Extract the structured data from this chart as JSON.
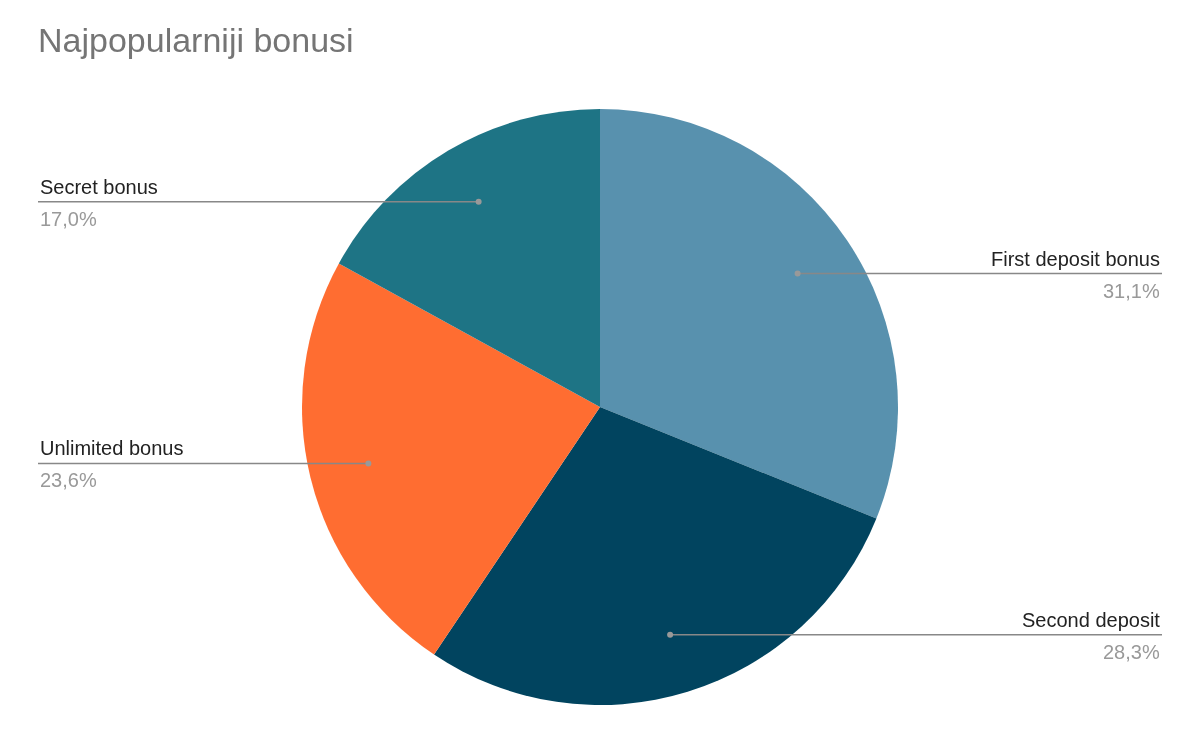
{
  "chart_data": {
    "type": "pie",
    "title": "Najpopularniji bonusi",
    "categories": [
      "First deposit bonus",
      "Second deposit",
      "Unlimited bonus",
      "Secret bonus"
    ],
    "values": [
      31.1,
      28.3,
      23.6,
      17.0
    ],
    "value_labels": [
      "31,1%",
      "28,3%",
      "23,6%",
      "17,0%"
    ],
    "colors": [
      "#5891ae",
      "#01445f",
      "#ff6d31",
      "#1e7485"
    ],
    "legend": false
  }
}
